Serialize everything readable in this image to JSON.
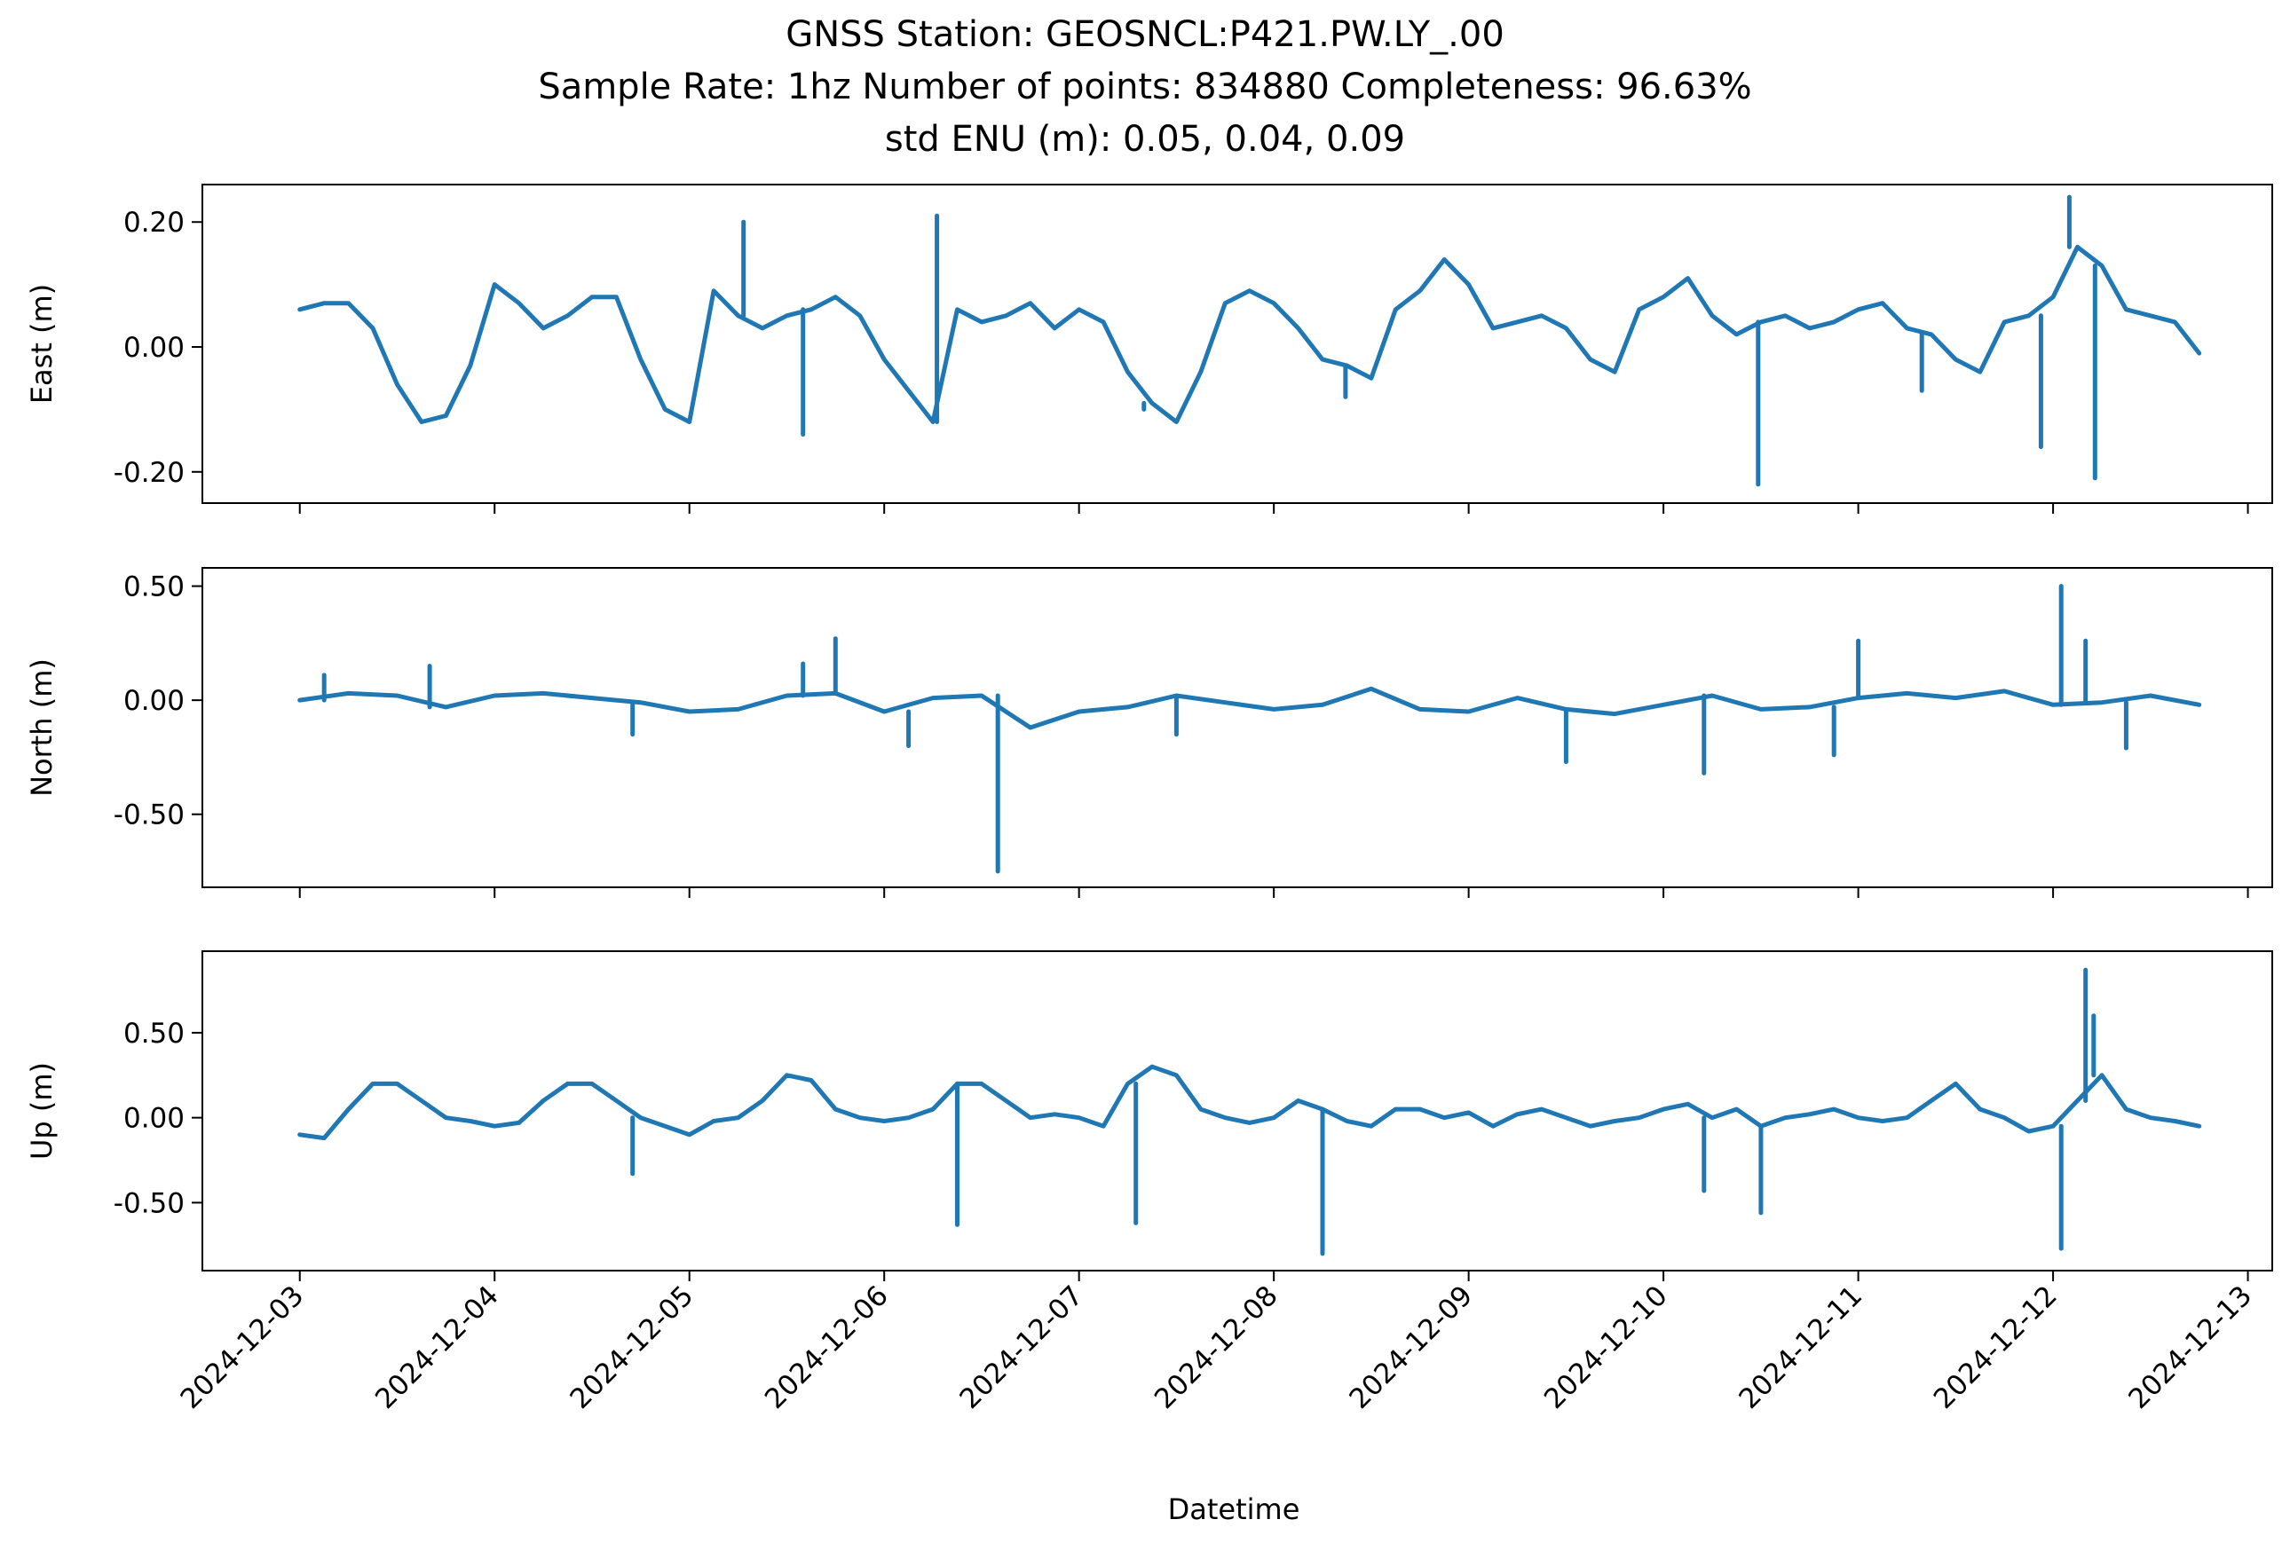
{
  "figure": {
    "title_lines": [
      "GNSS Station: GEOSNCL:P421.PW.LY_.00",
      "Sample Rate: 1hz   Number of points: 834880    Completeness:  96.63%",
      "std ENU (m):  0.05, 0.04, 0.09"
    ]
  },
  "chart_data": {
    "type": "line",
    "xlabel": "Datetime",
    "xlim": [
      "2024-12-02T12:00",
      "2024-12-13T03:00"
    ],
    "x_ticks": [
      "2024-12-03",
      "2024-12-04",
      "2024-12-05",
      "2024-12-06",
      "2024-12-07",
      "2024-12-08",
      "2024-12-09",
      "2024-12-10",
      "2024-12-11",
      "2024-12-12",
      "2024-12-13"
    ],
    "line_color": "#1f77b4",
    "panels": [
      {
        "ylabel": "East (m)",
        "ylim": [
          -0.25,
          0.26
        ],
        "y_ticks": [
          0.2,
          0.0,
          -0.2
        ],
        "y_tick_labels": [
          "0.20",
          "0.00",
          "-0.20"
        ],
        "x": [
          "2024-12-03T00:00",
          "2024-12-03T03:00",
          "2024-12-03T06:00",
          "2024-12-03T09:00",
          "2024-12-03T12:00",
          "2024-12-03T15:00",
          "2024-12-03T18:00",
          "2024-12-03T21:00",
          "2024-12-04T00:00",
          "2024-12-04T03:00",
          "2024-12-04T06:00",
          "2024-12-04T09:00",
          "2024-12-04T12:00",
          "2024-12-04T15:00",
          "2024-12-04T18:00",
          "2024-12-04T21:00",
          "2024-12-05T00:00",
          "2024-12-05T03:00",
          "2024-12-05T06:00",
          "2024-12-05T09:00",
          "2024-12-05T12:00",
          "2024-12-05T15:00",
          "2024-12-05T18:00",
          "2024-12-05T21:00",
          "2024-12-06T00:00",
          "2024-12-06T03:00",
          "2024-12-06T06:00",
          "2024-12-06T09:00",
          "2024-12-06T12:00",
          "2024-12-06T15:00",
          "2024-12-06T18:00",
          "2024-12-06T21:00",
          "2024-12-07T00:00",
          "2024-12-07T03:00",
          "2024-12-07T06:00",
          "2024-12-07T09:00",
          "2024-12-07T12:00",
          "2024-12-07T15:00",
          "2024-12-07T18:00",
          "2024-12-07T21:00",
          "2024-12-08T00:00",
          "2024-12-08T03:00",
          "2024-12-08T06:00",
          "2024-12-08T09:00",
          "2024-12-08T12:00",
          "2024-12-08T15:00",
          "2024-12-08T18:00",
          "2024-12-08T21:00",
          "2024-12-09T00:00",
          "2024-12-09T03:00",
          "2024-12-09T06:00",
          "2024-12-09T09:00",
          "2024-12-09T12:00",
          "2024-12-09T15:00",
          "2024-12-09T18:00",
          "2024-12-09T21:00",
          "2024-12-10T00:00",
          "2024-12-10T03:00",
          "2024-12-10T06:00",
          "2024-12-10T09:00",
          "2024-12-10T12:00",
          "2024-12-10T15:00",
          "2024-12-10T18:00",
          "2024-12-10T21:00",
          "2024-12-11T00:00",
          "2024-12-11T03:00",
          "2024-12-11T06:00",
          "2024-12-11T09:00",
          "2024-12-11T12:00",
          "2024-12-11T15:00",
          "2024-12-11T18:00",
          "2024-12-11T21:00",
          "2024-12-12T00:00",
          "2024-12-12T03:00",
          "2024-12-12T06:00",
          "2024-12-12T09:00",
          "2024-12-12T12:00",
          "2024-12-12T15:00",
          "2024-12-12T18:00"
        ],
        "values": [
          0.06,
          0.07,
          0.07,
          0.03,
          -0.06,
          -0.12,
          -0.11,
          -0.03,
          0.1,
          0.07,
          0.03,
          0.05,
          0.08,
          0.08,
          -0.02,
          -0.1,
          -0.12,
          0.09,
          0.05,
          0.03,
          0.05,
          0.06,
          0.08,
          0.05,
          -0.02,
          -0.07,
          -0.12,
          0.06,
          0.04,
          0.05,
          0.07,
          0.03,
          0.06,
          0.04,
          -0.04,
          -0.09,
          -0.12,
          -0.04,
          0.07,
          0.09,
          0.07,
          0.03,
          -0.02,
          -0.03,
          -0.05,
          0.06,
          0.09,
          0.14,
          0.1,
          0.03,
          0.04,
          0.05,
          0.03,
          -0.02,
          -0.04,
          0.06,
          0.08,
          0.11,
          0.05,
          0.02,
          0.04,
          0.05,
          0.03,
          0.04,
          0.06,
          0.07,
          0.03,
          0.02,
          -0.02,
          -0.04,
          0.04,
          0.05,
          0.08,
          0.16,
          0.13,
          0.06,
          0.05,
          0.04,
          -0.01
        ],
        "spikes": [
          {
            "x": "2024-12-05T06:40",
            "value": 0.2
          },
          {
            "x": "2024-12-05T14:00",
            "value": -0.14
          },
          {
            "x": "2024-12-06T06:30",
            "value": 0.21
          },
          {
            "x": "2024-12-07T08:00",
            "value": -0.1
          },
          {
            "x": "2024-12-08T08:50",
            "value": -0.08
          },
          {
            "x": "2024-12-10T11:40",
            "value": -0.22
          },
          {
            "x": "2024-12-11T07:50",
            "value": -0.07
          },
          {
            "x": "2024-12-11T22:30",
            "value": -0.16
          },
          {
            "x": "2024-12-12T02:00",
            "value": 0.24
          },
          {
            "x": "2024-12-12T05:10",
            "value": -0.21
          }
        ]
      },
      {
        "ylabel": "North (m)",
        "ylim": [
          -0.82,
          0.58
        ],
        "y_ticks": [
          0.5,
          0.0,
          -0.5
        ],
        "y_tick_labels": [
          "0.50",
          "0.00",
          "-0.50"
        ],
        "x": [
          "2024-12-03T00:00",
          "2024-12-03T06:00",
          "2024-12-03T12:00",
          "2024-12-03T18:00",
          "2024-12-04T00:00",
          "2024-12-04T06:00",
          "2024-12-04T12:00",
          "2024-12-04T18:00",
          "2024-12-05T00:00",
          "2024-12-05T06:00",
          "2024-12-05T12:00",
          "2024-12-05T18:00",
          "2024-12-06T00:00",
          "2024-12-06T06:00",
          "2024-12-06T12:00",
          "2024-12-06T18:00",
          "2024-12-07T00:00",
          "2024-12-07T06:00",
          "2024-12-07T12:00",
          "2024-12-07T18:00",
          "2024-12-08T00:00",
          "2024-12-08T06:00",
          "2024-12-08T12:00",
          "2024-12-08T18:00",
          "2024-12-09T00:00",
          "2024-12-09T06:00",
          "2024-12-09T12:00",
          "2024-12-09T18:00",
          "2024-12-10T00:00",
          "2024-12-10T06:00",
          "2024-12-10T12:00",
          "2024-12-10T18:00",
          "2024-12-11T00:00",
          "2024-12-11T06:00",
          "2024-12-11T12:00",
          "2024-12-11T18:00",
          "2024-12-12T00:00",
          "2024-12-12T06:00",
          "2024-12-12T12:00",
          "2024-12-12T18:00"
        ],
        "values": [
          0.0,
          0.03,
          0.02,
          -0.03,
          0.02,
          0.03,
          0.01,
          -0.01,
          -0.05,
          -0.04,
          0.02,
          0.03,
          -0.05,
          0.01,
          0.02,
          -0.12,
          -0.05,
          -0.03,
          0.02,
          -0.01,
          -0.04,
          -0.02,
          0.05,
          -0.04,
          -0.05,
          0.01,
          -0.04,
          -0.06,
          -0.02,
          0.02,
          -0.04,
          -0.03,
          0.01,
          0.03,
          0.01,
          0.04,
          -0.02,
          -0.01,
          0.02,
          -0.02
        ],
        "spikes": [
          {
            "x": "2024-12-03T03:00",
            "value": 0.11
          },
          {
            "x": "2024-12-03T16:00",
            "value": 0.15
          },
          {
            "x": "2024-12-04T17:00",
            "value": -0.15
          },
          {
            "x": "2024-12-05T14:00",
            "value": 0.16
          },
          {
            "x": "2024-12-05T18:00",
            "value": 0.27
          },
          {
            "x": "2024-12-06T03:00",
            "value": -0.2
          },
          {
            "x": "2024-12-06T14:00",
            "value": -0.75
          },
          {
            "x": "2024-12-07T12:00",
            "value": -0.15
          },
          {
            "x": "2024-12-09T12:00",
            "value": -0.27
          },
          {
            "x": "2024-12-10T05:00",
            "value": -0.32
          },
          {
            "x": "2024-12-10T21:00",
            "value": -0.24
          },
          {
            "x": "2024-12-11T00:00",
            "value": 0.26
          },
          {
            "x": "2024-12-12T01:00",
            "value": 0.5
          },
          {
            "x": "2024-12-12T04:00",
            "value": 0.26
          },
          {
            "x": "2024-12-12T09:00",
            "value": -0.21
          }
        ]
      },
      {
        "ylabel": "Up (m)",
        "ylim": [
          -0.9,
          0.98
        ],
        "y_ticks": [
          0.5,
          0.0,
          -0.5
        ],
        "y_tick_labels": [
          "0.50",
          "0.00",
          "-0.50"
        ],
        "x": [
          "2024-12-03T00:00",
          "2024-12-03T03:00",
          "2024-12-03T06:00",
          "2024-12-03T09:00",
          "2024-12-03T12:00",
          "2024-12-03T15:00",
          "2024-12-03T18:00",
          "2024-12-03T21:00",
          "2024-12-04T00:00",
          "2024-12-04T03:00",
          "2024-12-04T06:00",
          "2024-12-04T09:00",
          "2024-12-04T12:00",
          "2024-12-04T15:00",
          "2024-12-04T18:00",
          "2024-12-04T21:00",
          "2024-12-05T00:00",
          "2024-12-05T03:00",
          "2024-12-05T06:00",
          "2024-12-05T09:00",
          "2024-12-05T12:00",
          "2024-12-05T15:00",
          "2024-12-05T18:00",
          "2024-12-05T21:00",
          "2024-12-06T00:00",
          "2024-12-06T03:00",
          "2024-12-06T06:00",
          "2024-12-06T09:00",
          "2024-12-06T12:00",
          "2024-12-06T15:00",
          "2024-12-06T18:00",
          "2024-12-06T21:00",
          "2024-12-07T00:00",
          "2024-12-07T03:00",
          "2024-12-07T06:00",
          "2024-12-07T09:00",
          "2024-12-07T12:00",
          "2024-12-07T15:00",
          "2024-12-07T18:00",
          "2024-12-07T21:00",
          "2024-12-08T00:00",
          "2024-12-08T03:00",
          "2024-12-08T06:00",
          "2024-12-08T09:00",
          "2024-12-08T12:00",
          "2024-12-08T15:00",
          "2024-12-08T18:00",
          "2024-12-08T21:00",
          "2024-12-09T00:00",
          "2024-12-09T03:00",
          "2024-12-09T06:00",
          "2024-12-09T09:00",
          "2024-12-09T12:00",
          "2024-12-09T15:00",
          "2024-12-09T18:00",
          "2024-12-09T21:00",
          "2024-12-10T00:00",
          "2024-12-10T03:00",
          "2024-12-10T06:00",
          "2024-12-10T09:00",
          "2024-12-10T12:00",
          "2024-12-10T15:00",
          "2024-12-10T18:00",
          "2024-12-10T21:00",
          "2024-12-11T00:00",
          "2024-12-11T03:00",
          "2024-12-11T06:00",
          "2024-12-11T09:00",
          "2024-12-11T12:00",
          "2024-12-11T15:00",
          "2024-12-11T18:00",
          "2024-12-11T21:00",
          "2024-12-12T00:00",
          "2024-12-12T03:00",
          "2024-12-12T06:00",
          "2024-12-12T09:00",
          "2024-12-12T12:00",
          "2024-12-12T15:00",
          "2024-12-12T18:00"
        ],
        "values": [
          -0.1,
          -0.12,
          0.05,
          0.2,
          0.2,
          0.1,
          0.0,
          -0.02,
          -0.05,
          -0.03,
          0.1,
          0.2,
          0.2,
          0.1,
          0.0,
          -0.05,
          -0.1,
          -0.02,
          0.0,
          0.1,
          0.25,
          0.22,
          0.05,
          0.0,
          -0.02,
          0.0,
          0.05,
          0.2,
          0.2,
          0.1,
          0.0,
          0.02,
          0.0,
          -0.05,
          0.2,
          0.3,
          0.25,
          0.05,
          0.0,
          -0.03,
          0.0,
          0.1,
          0.05,
          -0.02,
          -0.05,
          0.05,
          0.05,
          0.0,
          0.03,
          -0.05,
          0.02,
          0.05,
          0.0,
          -0.05,
          -0.02,
          0.0,
          0.05,
          0.08,
          0.0,
          0.05,
          -0.05,
          0.0,
          0.02,
          0.05,
          0.0,
          -0.02,
          0.0,
          0.1,
          0.2,
          0.05,
          0.0,
          -0.08,
          -0.05,
          0.1,
          0.25,
          0.05,
          0.0,
          -0.02,
          -0.05
        ],
        "spikes": [
          {
            "x": "2024-12-04T17:00",
            "value": -0.33
          },
          {
            "x": "2024-12-06T09:00",
            "value": -0.63
          },
          {
            "x": "2024-12-07T07:00",
            "value": -0.62
          },
          {
            "x": "2024-12-08T06:00",
            "value": -0.8
          },
          {
            "x": "2024-12-10T05:00",
            "value": -0.43
          },
          {
            "x": "2024-12-10T12:00",
            "value": -0.56
          },
          {
            "x": "2024-12-12T01:00",
            "value": -0.77
          },
          {
            "x": "2024-12-12T04:00",
            "value": 0.87
          },
          {
            "x": "2024-12-12T05:00",
            "value": 0.6
          }
        ]
      }
    ]
  }
}
